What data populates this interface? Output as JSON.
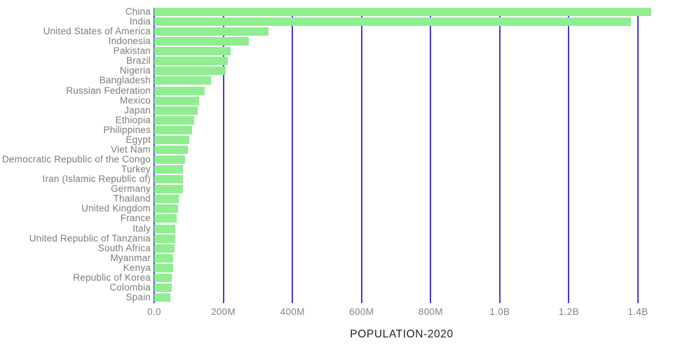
{
  "chart_data": {
    "type": "bar",
    "orientation": "horizontal",
    "title": "POPULATION-2020",
    "xlabel": "POPULATION-2020",
    "ylabel": "",
    "grid": "vertical",
    "legend": "none",
    "xlim_millions": [
      0,
      1480
    ],
    "x_ticks": [
      {
        "label": "0.0",
        "value_millions": 0
      },
      {
        "label": "200M",
        "value_millions": 200
      },
      {
        "label": "400M",
        "value_millions": 400
      },
      {
        "label": "600M",
        "value_millions": 600
      },
      {
        "label": "800M",
        "value_millions": 800
      },
      {
        "label": "1.0B",
        "value_millions": 1000
      },
      {
        "label": "1.2B",
        "value_millions": 1200
      },
      {
        "label": "1.4B",
        "value_millions": 1400
      }
    ],
    "categories": [
      "China",
      "India",
      "United States of America",
      "Indonesia",
      "Pakistan",
      "Brazil",
      "Nigeria",
      "Bangladesh",
      "Russian Federation",
      "Mexico",
      "Japan",
      "Ethiopia",
      "Philippines",
      "Egypt",
      "Viet Nam",
      "Democratic Republic of the Congo",
      "Turkey",
      "Iran (Islamic Republic of)",
      "Germany",
      "Thailand",
      "United Kingdom",
      "France",
      "Italy",
      "United Republic of Tanzania",
      "South Africa",
      "Myanmar",
      "Kenya",
      "Republic of Korea",
      "Colombia",
      "Spain"
    ],
    "values_millions": [
      1439,
      1380,
      331,
      274,
      221,
      213,
      206,
      165,
      146,
      129,
      126,
      115,
      110,
      102,
      97,
      90,
      84,
      84,
      84,
      70,
      68,
      65,
      60,
      60,
      59,
      54,
      54,
      51,
      51,
      47
    ],
    "colors": {
      "bar": "#90ee90",
      "gridline": "#4338e6",
      "category_label": "#7b7b7b",
      "tick_label": "#838383",
      "axis_title": "#1e1e1e",
      "background": "#ffffff"
    }
  }
}
